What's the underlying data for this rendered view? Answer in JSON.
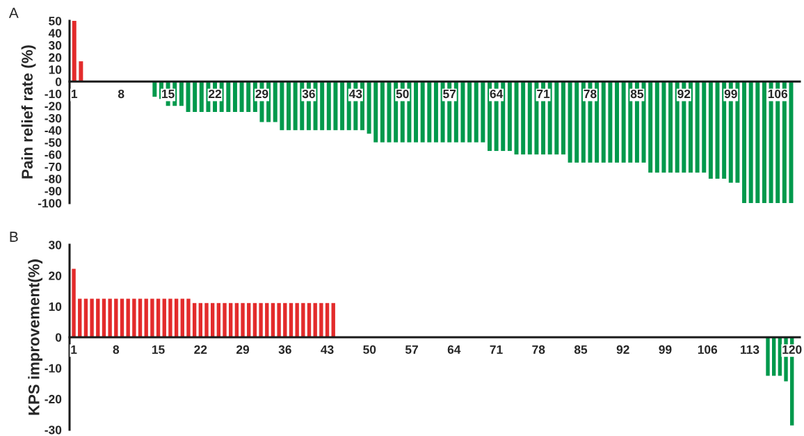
{
  "chart_data": [
    {
      "type": "bar",
      "ylabel": "Pain relief rate (%)",
      "annotations": [
        "A"
      ],
      "grid": false,
      "ylim": [
        -100,
        50
      ],
      "yticks": [
        -100,
        -90,
        -80,
        -70,
        -60,
        -50,
        -40,
        -30,
        -20,
        -10,
        0,
        10,
        20,
        30,
        40,
        50
      ],
      "categories": [
        "1",
        null,
        null,
        null,
        null,
        null,
        null,
        "8",
        null,
        null,
        null,
        null,
        null,
        null,
        "15",
        null,
        null,
        null,
        null,
        null,
        null,
        "22",
        null,
        null,
        null,
        null,
        null,
        null,
        "29",
        null,
        null,
        null,
        null,
        null,
        null,
        "36",
        null,
        null,
        null,
        null,
        null,
        null,
        "43",
        null,
        null,
        null,
        null,
        null,
        null,
        "50",
        null,
        null,
        null,
        null,
        null,
        null,
        "57",
        null,
        null,
        null,
        null,
        null,
        null,
        "64",
        null,
        null,
        null,
        null,
        null,
        null,
        "71",
        null,
        null,
        null,
        null,
        null,
        null,
        "78",
        null,
        null,
        null,
        null,
        null,
        null,
        "85",
        null,
        null,
        null,
        null,
        null,
        null,
        "92",
        null,
        null,
        null,
        null,
        null,
        null,
        "99",
        null,
        null,
        null,
        null,
        null,
        null,
        "106",
        null,
        null
      ],
      "values": [
        50,
        16.7,
        0,
        0,
        0,
        0,
        0,
        0,
        0,
        0,
        0,
        0,
        -12.5,
        -14.3,
        -20,
        -20,
        -20,
        -25,
        -25,
        -25,
        -25,
        -25,
        -25,
        -25,
        -25,
        -25,
        -25,
        -25,
        -33.3,
        -33.3,
        -33.3,
        -40,
        -40,
        -40,
        -40,
        -40,
        -40,
        -40,
        -40,
        -40,
        -40,
        -40,
        -40,
        -40,
        -42.9,
        -50,
        -50,
        -50,
        -50,
        -50,
        -50,
        -50,
        -50,
        -50,
        -50,
        -50,
        -50,
        -50,
        -50,
        -50,
        -50,
        -50,
        -57.1,
        -57.1,
        -57.1,
        -57.1,
        -60,
        -60,
        -60,
        -60,
        -60,
        -60,
        -60,
        -60,
        -66.7,
        -66.7,
        -66.7,
        -66.7,
        -66.7,
        -66.7,
        -66.7,
        -66.7,
        -66.7,
        -66.7,
        -66.7,
        -66.7,
        -75,
        -75,
        -75,
        -75,
        -75,
        -75,
        -75,
        -75,
        -75,
        -80,
        -80,
        -80,
        -83.3,
        -83.3,
        -100,
        -100,
        -100,
        -100,
        -100,
        -100,
        -100,
        -100
      ],
      "colors": [
        "#e32b2b",
        "#e32b2b",
        "#00994c",
        "#00994c",
        "#00994c",
        "#00994c",
        "#00994c",
        "#00994c",
        "#00994c",
        "#00994c",
        "#00994c",
        "#00994c",
        "#00994c",
        "#00994c",
        "#00994c",
        "#00994c",
        "#00994c",
        "#00994c",
        "#00994c",
        "#00994c",
        "#00994c",
        "#00994c",
        "#00994c",
        "#00994c",
        "#00994c",
        "#00994c",
        "#00994c",
        "#00994c",
        "#00994c",
        "#00994c",
        "#00994c",
        "#00994c",
        "#00994c",
        "#00994c",
        "#00994c",
        "#00994c",
        "#00994c",
        "#00994c",
        "#00994c",
        "#00994c",
        "#00994c",
        "#00994c",
        "#00994c",
        "#00994c",
        "#00994c",
        "#00994c",
        "#00994c",
        "#00994c",
        "#00994c",
        "#00994c",
        "#00994c",
        "#00994c",
        "#00994c",
        "#00994c",
        "#00994c",
        "#00994c",
        "#00994c",
        "#00994c",
        "#00994c",
        "#00994c",
        "#00994c",
        "#00994c",
        "#00994c",
        "#00994c",
        "#00994c",
        "#00994c",
        "#00994c",
        "#00994c",
        "#00994c",
        "#00994c",
        "#00994c",
        "#00994c",
        "#00994c",
        "#00994c",
        "#00994c",
        "#00994c",
        "#00994c",
        "#00994c",
        "#00994c",
        "#00994c",
        "#00994c",
        "#00994c",
        "#00994c",
        "#00994c",
        "#00994c",
        "#00994c",
        "#00994c",
        "#00994c",
        "#00994c",
        "#00994c",
        "#00994c",
        "#00994c",
        "#00994c",
        "#00994c",
        "#00994c",
        "#00994c",
        "#00994c",
        "#00994c",
        "#00994c",
        "#00994c",
        "#00994c",
        "#00994c",
        "#00994c",
        "#00994c",
        "#00994c",
        "#00994c",
        "#00994c",
        "#00994c"
      ]
    },
    {
      "type": "bar",
      "ylabel": "KPS improvement(%)",
      "annotations": [
        "B"
      ],
      "grid": false,
      "ylim": [
        -30,
        30
      ],
      "yticks": [
        -30,
        -20,
        -10,
        0,
        10,
        20,
        30
      ],
      "categories": [
        "1",
        null,
        null,
        null,
        null,
        null,
        null,
        "8",
        null,
        null,
        null,
        null,
        null,
        null,
        "15",
        null,
        null,
        null,
        null,
        null,
        null,
        "22",
        null,
        null,
        null,
        null,
        null,
        null,
        "29",
        null,
        null,
        null,
        null,
        null,
        null,
        "36",
        null,
        null,
        null,
        null,
        null,
        null,
        "43",
        null,
        null,
        null,
        null,
        null,
        null,
        "50",
        null,
        null,
        null,
        null,
        null,
        null,
        "57",
        null,
        null,
        null,
        null,
        null,
        null,
        "64",
        null,
        null,
        null,
        null,
        null,
        null,
        "71",
        null,
        null,
        null,
        null,
        null,
        null,
        "78",
        null,
        null,
        null,
        null,
        null,
        null,
        "85",
        null,
        null,
        null,
        null,
        null,
        null,
        "92",
        null,
        null,
        null,
        null,
        null,
        null,
        "99",
        null,
        null,
        null,
        null,
        null,
        null,
        "106",
        null,
        null,
        null,
        null,
        null,
        null,
        "113",
        null,
        null,
        null,
        null,
        null,
        null,
        "120"
      ],
      "values": [
        22.2,
        12.5,
        12.5,
        12.5,
        12.5,
        12.5,
        12.5,
        12.5,
        12.5,
        12.5,
        12.5,
        12.5,
        12.5,
        12.5,
        12.5,
        12.5,
        12.5,
        12.5,
        12.5,
        12.5,
        11.1,
        11.1,
        11.1,
        11.1,
        11.1,
        11.1,
        11.1,
        11.1,
        11.1,
        11.1,
        11.1,
        11.1,
        11.1,
        11.1,
        11.1,
        11.1,
        11.1,
        11.1,
        11.1,
        11.1,
        11.1,
        11.1,
        11.1,
        11.1,
        0,
        0,
        0,
        0,
        0,
        0,
        0,
        0,
        0,
        0,
        0,
        0,
        0,
        0,
        0,
        0,
        0,
        0,
        0,
        0,
        0,
        0,
        0,
        0,
        0,
        0,
        0,
        0,
        0,
        0,
        0,
        0,
        0,
        0,
        0,
        0,
        0,
        0,
        0,
        0,
        0,
        0,
        0,
        0,
        0,
        0,
        0,
        0,
        0,
        0,
        0,
        0,
        0,
        0,
        0,
        0,
        0,
        0,
        0,
        0,
        0,
        0,
        0,
        0,
        0,
        0,
        0,
        0,
        0,
        0,
        0,
        -12.5,
        -12.5,
        -12.5,
        -14.3,
        -28.6
      ],
      "colors": [
        "#e32b2b",
        "#e32b2b",
        "#e32b2b",
        "#e32b2b",
        "#e32b2b",
        "#e32b2b",
        "#e32b2b",
        "#e32b2b",
        "#e32b2b",
        "#e32b2b",
        "#e32b2b",
        "#e32b2b",
        "#e32b2b",
        "#e32b2b",
        "#e32b2b",
        "#e32b2b",
        "#e32b2b",
        "#e32b2b",
        "#e32b2b",
        "#e32b2b",
        "#e32b2b",
        "#e32b2b",
        "#e32b2b",
        "#e32b2b",
        "#e32b2b",
        "#e32b2b",
        "#e32b2b",
        "#e32b2b",
        "#e32b2b",
        "#e32b2b",
        "#e32b2b",
        "#e32b2b",
        "#e32b2b",
        "#e32b2b",
        "#e32b2b",
        "#e32b2b",
        "#e32b2b",
        "#e32b2b",
        "#e32b2b",
        "#e32b2b",
        "#e32b2b",
        "#e32b2b",
        "#e32b2b",
        "#e32b2b",
        "#00994c",
        "#00994c",
        "#00994c",
        "#00994c",
        "#00994c",
        "#00994c",
        "#00994c",
        "#00994c",
        "#00994c",
        "#00994c",
        "#00994c",
        "#00994c",
        "#00994c",
        "#00994c",
        "#00994c",
        "#00994c",
        "#00994c",
        "#00994c",
        "#00994c",
        "#00994c",
        "#00994c",
        "#00994c",
        "#00994c",
        "#00994c",
        "#00994c",
        "#00994c",
        "#00994c",
        "#00994c",
        "#00994c",
        "#00994c",
        "#00994c",
        "#00994c",
        "#00994c",
        "#00994c",
        "#00994c",
        "#00994c",
        "#00994c",
        "#00994c",
        "#00994c",
        "#00994c",
        "#00994c",
        "#00994c",
        "#00994c",
        "#00994c",
        "#00994c",
        "#00994c",
        "#00994c",
        "#00994c",
        "#00994c",
        "#00994c",
        "#00994c",
        "#00994c",
        "#00994c",
        "#00994c",
        "#00994c",
        "#00994c",
        "#00994c",
        "#00994c",
        "#00994c",
        "#00994c",
        "#00994c",
        "#00994c",
        "#00994c",
        "#00994c",
        "#00994c",
        "#00994c",
        "#00994c",
        "#00994c",
        "#00994c",
        "#00994c",
        "#00994c",
        "#00994c",
        "#00994c",
        "#00994c",
        "#00994c",
        "#00994c"
      ]
    }
  ]
}
